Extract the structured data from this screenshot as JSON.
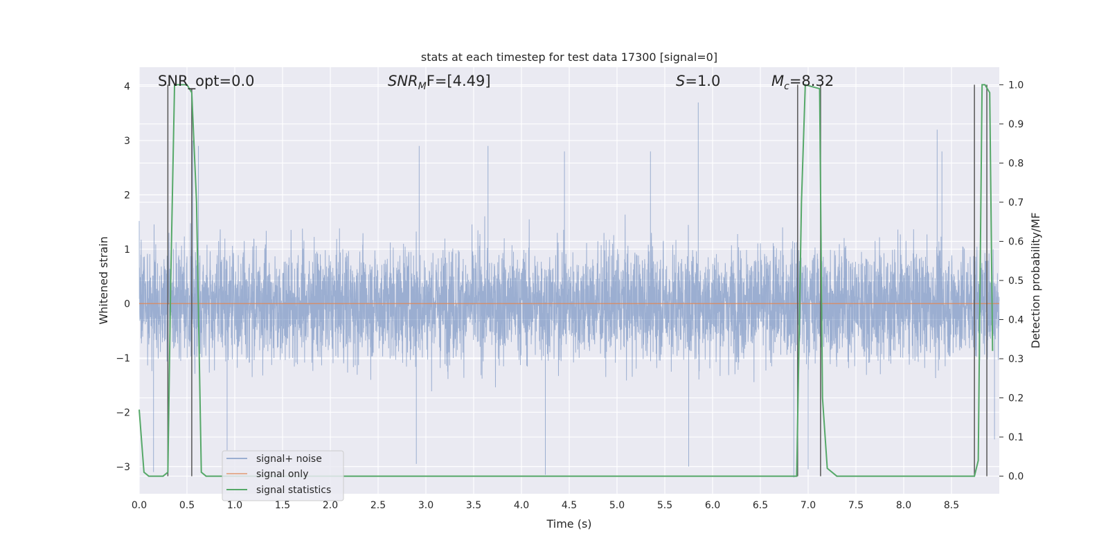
{
  "chart_data": {
    "type": "line",
    "title": "stats at each timestep for test data 17300 [signal=0]",
    "xlabel": "Time (s)",
    "ylabel": "Whitened strain",
    "y2label": "Detection probability/MF",
    "xlim": [
      0.0,
      9.0
    ],
    "ylim": [
      -3.5,
      4.35
    ],
    "y2lim": [
      -0.045,
      1.045
    ],
    "xticks": [
      0.0,
      0.5,
      1.0,
      1.5,
      2.0,
      2.5,
      3.0,
      3.5,
      4.0,
      4.5,
      5.0,
      5.5,
      6.0,
      6.5,
      7.0,
      7.5,
      8.0,
      8.5
    ],
    "xtick_labels": [
      "0.0",
      "0.5",
      "1.0",
      "1.5",
      "2.0",
      "2.5",
      "3.0",
      "3.5",
      "4.0",
      "4.5",
      "5.0",
      "5.5",
      "6.0",
      "6.5",
      "7.0",
      "7.5",
      "8.0",
      "8.5"
    ],
    "yticks": [
      -3,
      -2,
      -1,
      0,
      1,
      2,
      3,
      4
    ],
    "ytick_labels": [
      "−3",
      "−2",
      "−1",
      "0",
      "1",
      "2",
      "3",
      "4"
    ],
    "y2ticks": [
      0.0,
      0.1,
      0.2,
      0.3,
      0.4,
      0.5,
      0.6,
      0.7,
      0.8,
      0.9,
      1.0
    ],
    "y2tick_labels": [
      "0.0",
      "0.1",
      "0.2",
      "0.3",
      "0.4",
      "0.5",
      "0.6",
      "0.7",
      "0.8",
      "0.9",
      "1.0"
    ],
    "grid": true,
    "legend_position": "lower-left",
    "annotations": {
      "snr_opt": "SNR_opt=0.0",
      "snr_mf": {
        "base": "SNR",
        "sub": "M",
        "tail": "F=[4.49]"
      },
      "s": {
        "sym": "S",
        "rest": "=1.0"
      },
      "mc": {
        "base": "M",
        "sub": "c",
        "rest": "=8.32"
      }
    },
    "series": [
      {
        "name": "signal+ noise",
        "axis": "left",
        "color": "#4c72b0",
        "description_values": {
          "x_range": [
            0.0,
            9.0
          ],
          "typical_envelope": [
            -1.8,
            1.8
          ],
          "max": 3.7,
          "min": -3.2
        },
        "peaks": [
          {
            "x": 0.56,
            "y": 3.0
          },
          {
            "x": 0.62,
            "y": 2.9
          },
          {
            "x": 0.92,
            "y": -2.7
          },
          {
            "x": 2.93,
            "y": 2.9
          },
          {
            "x": 3.65,
            "y": 2.9
          },
          {
            "x": 4.45,
            "y": 2.8
          },
          {
            "x": 5.35,
            "y": 2.8
          },
          {
            "x": 5.85,
            "y": 3.7
          },
          {
            "x": 6.85,
            "y": -3.2
          },
          {
            "x": 7.0,
            "y": -3.05
          },
          {
            "x": 8.35,
            "y": 3.2
          },
          {
            "x": 8.4,
            "y": 2.8
          },
          {
            "x": 0.15,
            "y": -3.1
          },
          {
            "x": 4.25,
            "y": -3.15
          },
          {
            "x": 5.75,
            "y": -3.0
          },
          {
            "x": 2.9,
            "y": -2.95
          },
          {
            "x": 8.95,
            "y": -2.5
          }
        ]
      },
      {
        "name": "signal only",
        "axis": "left",
        "color": "#dd8452",
        "x": [
          0.0,
          9.0
        ],
        "y": [
          0.0,
          0.0
        ]
      },
      {
        "name": "signal statistics",
        "axis": "right",
        "color": "#55a868",
        "x": [
          0.0,
          0.05,
          0.1,
          0.15,
          0.25,
          0.3,
          0.33,
          0.37,
          0.5,
          0.55,
          0.6,
          0.65,
          0.7,
          1.0,
          6.5,
          6.88,
          6.93,
          6.97,
          7.12,
          7.15,
          7.2,
          7.3,
          8.5,
          8.74,
          8.78,
          8.82,
          8.85,
          8.9,
          8.93
        ],
        "y": [
          0.17,
          0.01,
          0.0,
          0.0,
          0.0,
          0.01,
          0.5,
          1.0,
          1.0,
          0.98,
          0.7,
          0.01,
          0.0,
          0.0,
          0.0,
          0.0,
          0.7,
          1.0,
          0.99,
          0.2,
          0.02,
          0.0,
          0.0,
          0.0,
          0.04,
          1.0,
          1.0,
          0.98,
          0.32
        ]
      }
    ],
    "vertical_markers": [
      {
        "x": 0.3,
        "y_top": 1.0
      },
      {
        "x": 0.55,
        "y_top": 0.99
      },
      {
        "x": 6.89,
        "y_top": 1.0
      },
      {
        "x": 7.13,
        "y_top": 1.0
      },
      {
        "x": 8.74,
        "y_top": 1.0
      },
      {
        "x": 8.87,
        "y_top": 1.0
      }
    ]
  }
}
